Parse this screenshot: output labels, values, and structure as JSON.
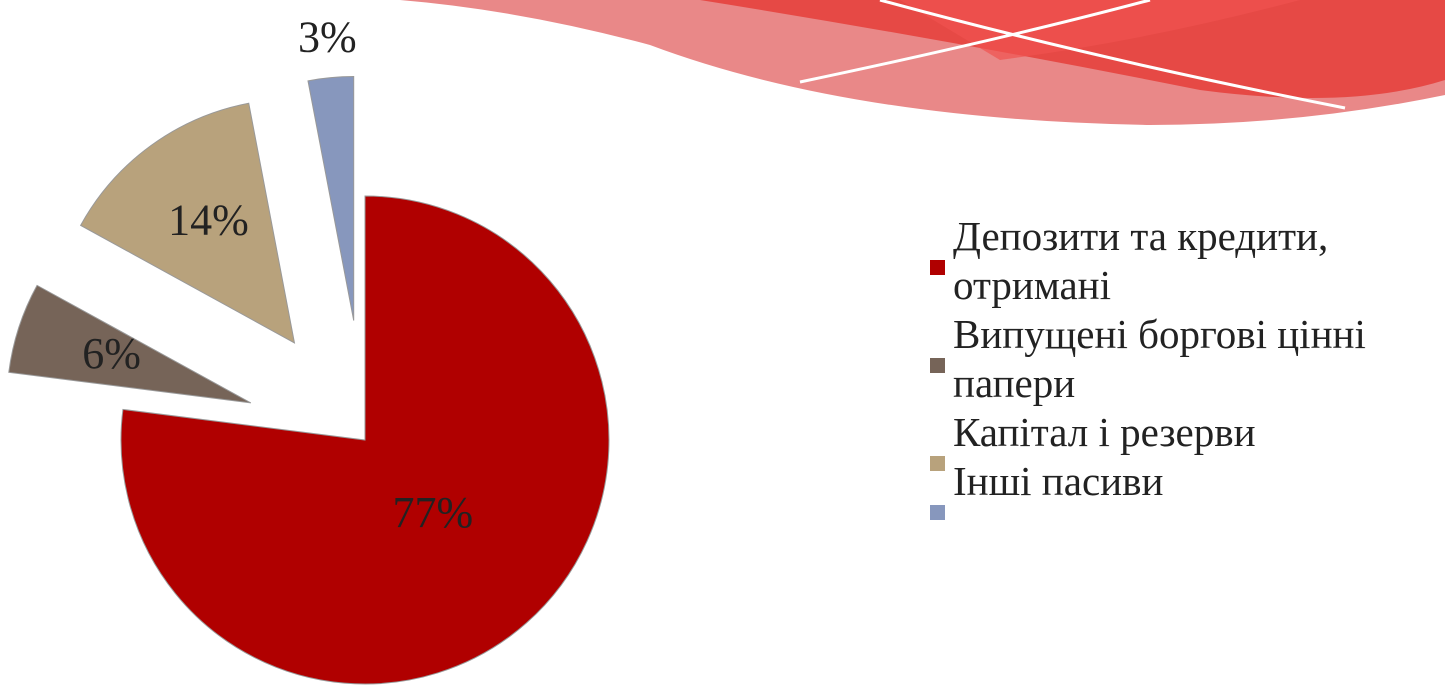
{
  "chart_data": {
    "type": "pie",
    "categories": [
      "Депозити та кредити, отримані",
      "Випущені боргові цінні папери",
      "Капітал і резерви",
      "Інші пасиви"
    ],
    "values": [
      77,
      6,
      14,
      3
    ],
    "value_labels": [
      "77%",
      "6%",
      "14%",
      "3%"
    ],
    "colors": [
      "#b00000",
      "#766458",
      "#b8a27c",
      "#8797bd"
    ],
    "legend": "right"
  }
}
